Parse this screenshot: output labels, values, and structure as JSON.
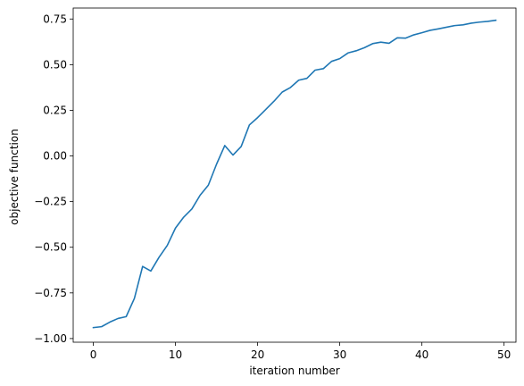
{
  "chart_data": {
    "type": "line",
    "title": "",
    "xlabel": "iteration number",
    "ylabel": "objective function",
    "xlim": [
      -2.45,
      51.45
    ],
    "ylim": [
      -1.02,
      0.81
    ],
    "x_ticks": [
      0,
      10,
      20,
      30,
      40,
      50
    ],
    "x_tick_labels": [
      "0",
      "10",
      "20",
      "30",
      "40",
      "50"
    ],
    "y_ticks": [
      -1.0,
      -0.75,
      -0.5,
      -0.25,
      0.0,
      0.25,
      0.5,
      0.75
    ],
    "y_tick_labels": [
      "−1.00",
      "−0.75",
      "−0.50",
      "−0.25",
      "0.00",
      "0.25",
      "0.50",
      "0.75"
    ],
    "grid": false,
    "legend": false,
    "series": [
      {
        "color": "#1f77b4",
        "x": [
          0,
          1,
          2,
          3,
          4,
          5,
          6,
          7,
          8,
          9,
          10,
          11,
          12,
          13,
          14,
          15,
          16,
          17,
          18,
          19,
          20,
          21,
          22,
          23,
          24,
          25,
          26,
          27,
          28,
          29,
          30,
          31,
          32,
          33,
          34,
          35,
          36,
          37,
          38,
          39,
          40,
          41,
          42,
          43,
          44,
          45,
          46,
          47,
          48,
          49
        ],
        "values": [
          -0.94,
          -0.935,
          -0.91,
          -0.89,
          -0.88,
          -0.78,
          -0.605,
          -0.63,
          -0.555,
          -0.49,
          -0.395,
          -0.335,
          -0.29,
          -0.215,
          -0.16,
          -0.045,
          0.057,
          0.005,
          0.052,
          0.17,
          0.21,
          0.255,
          0.3,
          0.35,
          0.375,
          0.415,
          0.425,
          0.47,
          0.478,
          0.518,
          0.533,
          0.564,
          0.576,
          0.593,
          0.615,
          0.623,
          0.617,
          0.647,
          0.645,
          0.663,
          0.675,
          0.688,
          0.696,
          0.705,
          0.714,
          0.718,
          0.727,
          0.733,
          0.737,
          0.743
        ]
      }
    ]
  }
}
